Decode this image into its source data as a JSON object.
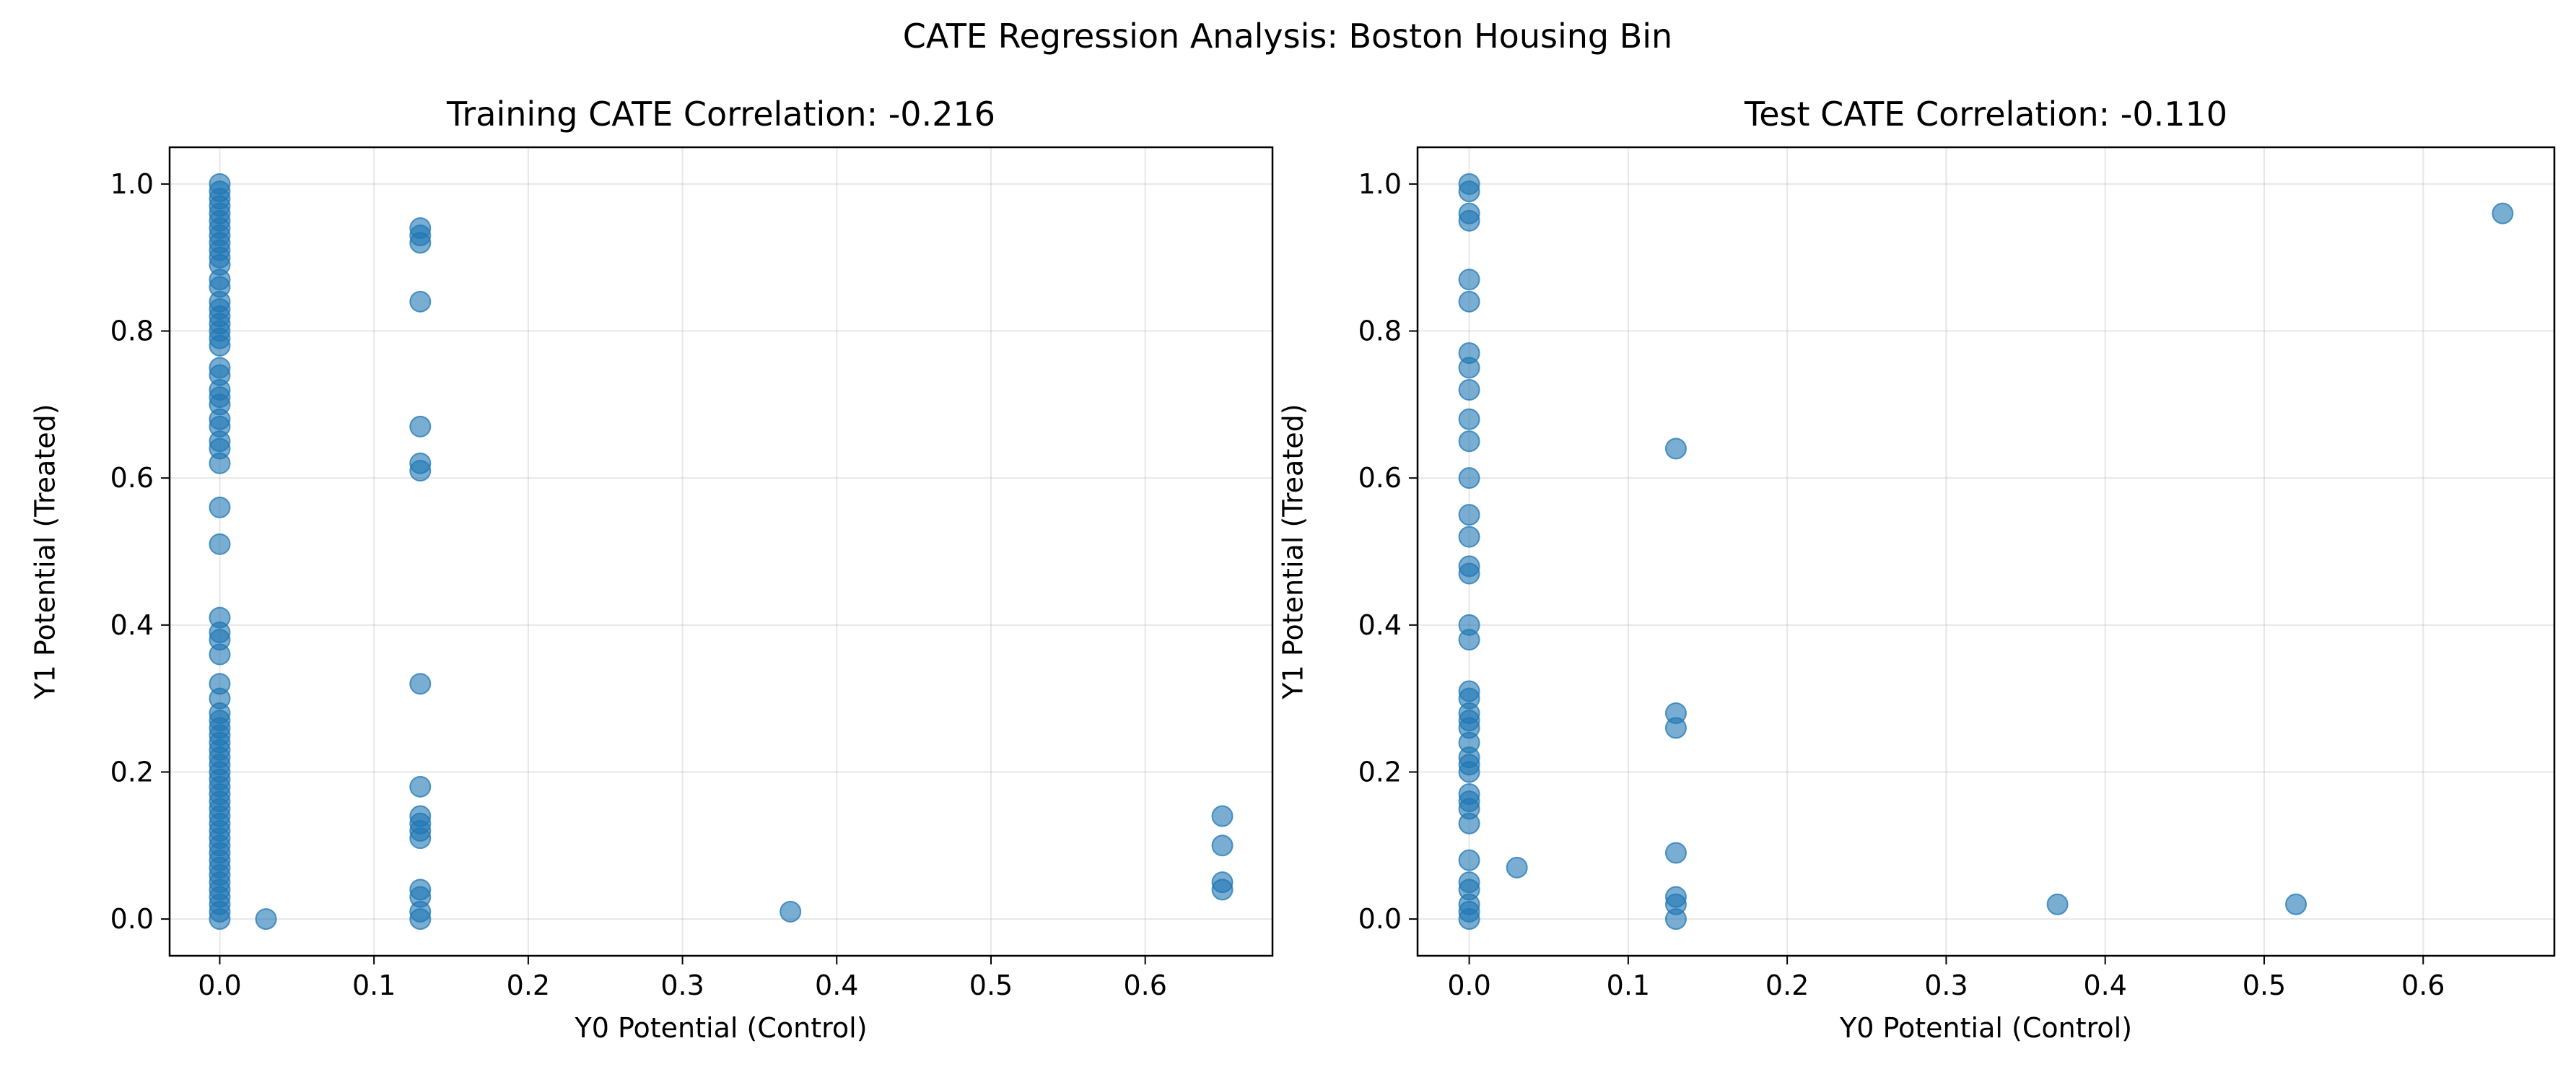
{
  "figure": {
    "suptitle": "CATE Regression Analysis: Boston Housing Bin"
  },
  "chart_data": [
    {
      "type": "scatter",
      "title": "Training CATE Correlation: -0.216",
      "xlabel": "Y0 Potential (Control)",
      "ylabel": "Y1 Potential (Treated)",
      "xlim": [
        -0.0325,
        0.6825
      ],
      "ylim": [
        -0.05,
        1.05
      ],
      "xticks": [
        0.0,
        0.1,
        0.2,
        0.3,
        0.4,
        0.5,
        0.6
      ],
      "xtick_labels": [
        "0.0",
        "0.1",
        "0.2",
        "0.3",
        "0.4",
        "0.5",
        "0.6"
      ],
      "yticks": [
        0.0,
        0.2,
        0.4,
        0.6,
        0.8,
        1.0
      ],
      "ytick_labels": [
        "0.0",
        "0.2",
        "0.4",
        "0.6",
        "0.8",
        "1.0"
      ],
      "grid": true,
      "color": "#1f77b4",
      "points": [
        [
          0,
          1.0
        ],
        [
          0,
          0.99
        ],
        [
          0,
          0.98
        ],
        [
          0,
          0.97
        ],
        [
          0,
          0.96
        ],
        [
          0,
          0.95
        ],
        [
          0,
          0.94
        ],
        [
          0,
          0.93
        ],
        [
          0,
          0.92
        ],
        [
          0,
          0.91
        ],
        [
          0,
          0.9
        ],
        [
          0,
          0.89
        ],
        [
          0,
          0.87
        ],
        [
          0,
          0.86
        ],
        [
          0,
          0.84
        ],
        [
          0,
          0.83
        ],
        [
          0,
          0.82
        ],
        [
          0,
          0.81
        ],
        [
          0,
          0.8
        ],
        [
          0,
          0.79
        ],
        [
          0,
          0.78
        ],
        [
          0,
          0.75
        ],
        [
          0,
          0.74
        ],
        [
          0,
          0.72
        ],
        [
          0,
          0.71
        ],
        [
          0,
          0.7
        ],
        [
          0,
          0.68
        ],
        [
          0,
          0.67
        ],
        [
          0,
          0.65
        ],
        [
          0,
          0.64
        ],
        [
          0,
          0.62
        ],
        [
          0,
          0.56
        ],
        [
          0,
          0.51
        ],
        [
          0,
          0.41
        ],
        [
          0,
          0.39
        ],
        [
          0,
          0.38
        ],
        [
          0,
          0.36
        ],
        [
          0,
          0.32
        ],
        [
          0,
          0.3
        ],
        [
          0,
          0.28
        ],
        [
          0,
          0.27
        ],
        [
          0,
          0.26
        ],
        [
          0,
          0.25
        ],
        [
          0,
          0.24
        ],
        [
          0,
          0.23
        ],
        [
          0,
          0.22
        ],
        [
          0,
          0.21
        ],
        [
          0,
          0.2
        ],
        [
          0,
          0.19
        ],
        [
          0,
          0.18
        ],
        [
          0,
          0.17
        ],
        [
          0,
          0.16
        ],
        [
          0,
          0.15
        ],
        [
          0,
          0.14
        ],
        [
          0,
          0.13
        ],
        [
          0,
          0.12
        ],
        [
          0,
          0.11
        ],
        [
          0,
          0.1
        ],
        [
          0,
          0.09
        ],
        [
          0,
          0.08
        ],
        [
          0,
          0.07
        ],
        [
          0,
          0.06
        ],
        [
          0,
          0.05
        ],
        [
          0,
          0.04
        ],
        [
          0,
          0.03
        ],
        [
          0,
          0.02
        ],
        [
          0,
          0.01
        ],
        [
          0,
          0.0
        ],
        [
          0.03,
          0.0
        ],
        [
          0.13,
          0.94
        ],
        [
          0.13,
          0.93
        ],
        [
          0.13,
          0.92
        ],
        [
          0.13,
          0.84
        ],
        [
          0.13,
          0.67
        ],
        [
          0.13,
          0.62
        ],
        [
          0.13,
          0.61
        ],
        [
          0.13,
          0.32
        ],
        [
          0.13,
          0.18
        ],
        [
          0.13,
          0.14
        ],
        [
          0.13,
          0.13
        ],
        [
          0.13,
          0.12
        ],
        [
          0.13,
          0.11
        ],
        [
          0.13,
          0.04
        ],
        [
          0.13,
          0.03
        ],
        [
          0.13,
          0.01
        ],
        [
          0.13,
          0.0
        ],
        [
          0.37,
          0.01
        ],
        [
          0.65,
          0.14
        ],
        [
          0.65,
          0.1
        ],
        [
          0.65,
          0.05
        ],
        [
          0.65,
          0.04
        ]
      ]
    },
    {
      "type": "scatter",
      "title": "Test CATE Correlation: -0.110",
      "xlabel": "Y0 Potential (Control)",
      "ylabel": "Y1 Potential (Treated)",
      "xlim": [
        -0.0325,
        0.6825
      ],
      "ylim": [
        -0.05,
        1.05
      ],
      "xticks": [
        0.0,
        0.1,
        0.2,
        0.3,
        0.4,
        0.5,
        0.6
      ],
      "xtick_labels": [
        "0.0",
        "0.1",
        "0.2",
        "0.3",
        "0.4",
        "0.5",
        "0.6"
      ],
      "yticks": [
        0.0,
        0.2,
        0.4,
        0.6,
        0.8,
        1.0
      ],
      "ytick_labels": [
        "0.0",
        "0.2",
        "0.4",
        "0.6",
        "0.8",
        "1.0"
      ],
      "grid": true,
      "color": "#1f77b4",
      "points": [
        [
          0,
          1.0
        ],
        [
          0,
          0.99
        ],
        [
          0,
          0.96
        ],
        [
          0,
          0.95
        ],
        [
          0,
          0.87
        ],
        [
          0,
          0.84
        ],
        [
          0,
          0.77
        ],
        [
          0,
          0.75
        ],
        [
          0,
          0.72
        ],
        [
          0,
          0.68
        ],
        [
          0,
          0.65
        ],
        [
          0,
          0.6
        ],
        [
          0,
          0.55
        ],
        [
          0,
          0.52
        ],
        [
          0,
          0.48
        ],
        [
          0,
          0.47
        ],
        [
          0,
          0.4
        ],
        [
          0,
          0.38
        ],
        [
          0,
          0.31
        ],
        [
          0,
          0.3
        ],
        [
          0,
          0.28
        ],
        [
          0,
          0.27
        ],
        [
          0,
          0.26
        ],
        [
          0,
          0.24
        ],
        [
          0,
          0.22
        ],
        [
          0,
          0.21
        ],
        [
          0,
          0.2
        ],
        [
          0,
          0.17
        ],
        [
          0,
          0.16
        ],
        [
          0,
          0.15
        ],
        [
          0,
          0.13
        ],
        [
          0,
          0.08
        ],
        [
          0,
          0.05
        ],
        [
          0,
          0.04
        ],
        [
          0,
          0.02
        ],
        [
          0,
          0.01
        ],
        [
          0,
          0.0
        ],
        [
          0.03,
          0.07
        ],
        [
          0.13,
          0.64
        ],
        [
          0.13,
          0.28
        ],
        [
          0.13,
          0.26
        ],
        [
          0.13,
          0.09
        ],
        [
          0.13,
          0.03
        ],
        [
          0.13,
          0.02
        ],
        [
          0.13,
          0.0
        ],
        [
          0.37,
          0.02
        ],
        [
          0.52,
          0.02
        ],
        [
          0.65,
          0.96
        ]
      ]
    }
  ]
}
